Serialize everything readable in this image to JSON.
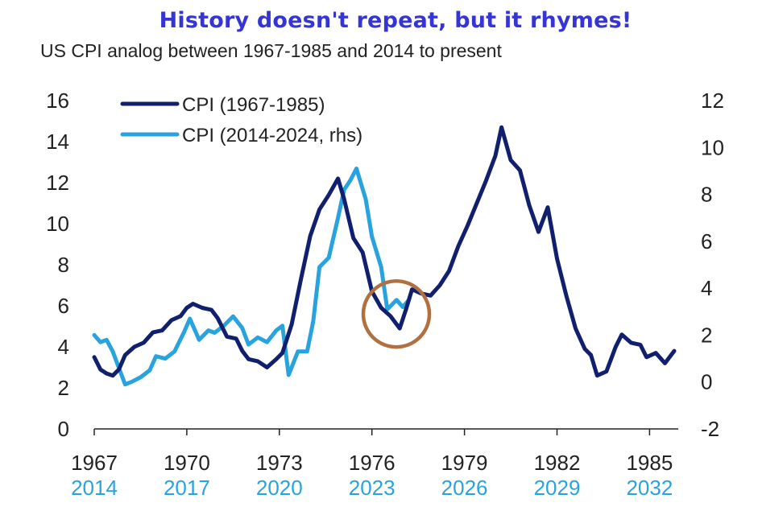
{
  "title": "History doesn't repeat, but it rhymes!",
  "subtitle": "US CPI analog between 1967-1985 and 2014 to present",
  "colors": {
    "title": "#3535d6",
    "series_1967": "#10206e",
    "series_2014": "#29a3dd",
    "highlight_circle": "#b07040"
  },
  "chart_data": {
    "type": "line",
    "title": "History doesn't repeat, but it rhymes!",
    "subtitle": "US CPI analog between 1967-1985 and 2014 to present",
    "x_axis_primary": {
      "label": "",
      "ticks": [
        "1967",
        "1970",
        "1973",
        "1976",
        "1979",
        "1982",
        "1985"
      ],
      "range": [
        1967,
        1986
      ]
    },
    "x_axis_secondary": {
      "label": "",
      "ticks": [
        "2014",
        "2017",
        "2020",
        "2023",
        "2026",
        "2029",
        "2032"
      ],
      "range": [
        2014,
        2033
      ]
    },
    "y_axis_left": {
      "label": "",
      "ticks": [
        "0",
        "2",
        "4",
        "6",
        "8",
        "10",
        "12",
        "14",
        "16"
      ],
      "range": [
        0,
        16
      ]
    },
    "y_axis_right": {
      "label": "",
      "ticks": [
        "-2",
        "0",
        "2",
        "4",
        "6",
        "8",
        "10",
        "12"
      ],
      "range": [
        -2,
        12
      ]
    },
    "grid": false,
    "legend_position": "top-left",
    "annotation": "circle around 1977 / 2024",
    "series": [
      {
        "name": "CPI (1967-1985)",
        "axis": "left",
        "color": "#10206e",
        "points": [
          [
            1967.0,
            3.5
          ],
          [
            1967.2,
            2.9
          ],
          [
            1967.4,
            2.7
          ],
          [
            1967.6,
            2.6
          ],
          [
            1967.8,
            2.9
          ],
          [
            1968.0,
            3.6
          ],
          [
            1968.3,
            4.0
          ],
          [
            1968.6,
            4.2
          ],
          [
            1968.9,
            4.7
          ],
          [
            1969.2,
            4.8
          ],
          [
            1969.5,
            5.3
          ],
          [
            1969.8,
            5.5
          ],
          [
            1970.0,
            5.9
          ],
          [
            1970.2,
            6.1
          ],
          [
            1970.5,
            5.9
          ],
          [
            1970.8,
            5.8
          ],
          [
            1971.0,
            5.4
          ],
          [
            1971.3,
            4.5
          ],
          [
            1971.6,
            4.4
          ],
          [
            1971.8,
            3.8
          ],
          [
            1972.0,
            3.4
          ],
          [
            1972.3,
            3.3
          ],
          [
            1972.6,
            3.0
          ],
          [
            1972.9,
            3.4
          ],
          [
            1973.1,
            3.7
          ],
          [
            1973.4,
            5.1
          ],
          [
            1973.7,
            7.3
          ],
          [
            1974.0,
            9.4
          ],
          [
            1974.3,
            10.7
          ],
          [
            1974.6,
            11.4
          ],
          [
            1974.9,
            12.2
          ],
          [
            1975.1,
            11.2
          ],
          [
            1975.4,
            9.3
          ],
          [
            1975.7,
            8.6
          ],
          [
            1976.0,
            6.7
          ],
          [
            1976.3,
            5.9
          ],
          [
            1976.6,
            5.5
          ],
          [
            1976.9,
            4.9
          ],
          [
            1977.1,
            5.8
          ],
          [
            1977.3,
            6.8
          ],
          [
            1977.6,
            6.6
          ],
          [
            1977.9,
            6.5
          ],
          [
            1978.2,
            7.0
          ],
          [
            1978.5,
            7.7
          ],
          [
            1978.8,
            8.9
          ],
          [
            1979.1,
            9.9
          ],
          [
            1979.4,
            11.0
          ],
          [
            1979.7,
            12.1
          ],
          [
            1980.0,
            13.3
          ],
          [
            1980.2,
            14.7
          ],
          [
            1980.5,
            13.1
          ],
          [
            1980.8,
            12.6
          ],
          [
            1981.1,
            10.9
          ],
          [
            1981.4,
            9.6
          ],
          [
            1981.7,
            10.8
          ],
          [
            1982.0,
            8.3
          ],
          [
            1982.3,
            6.5
          ],
          [
            1982.6,
            4.9
          ],
          [
            1982.9,
            3.9
          ],
          [
            1983.1,
            3.6
          ],
          [
            1983.3,
            2.6
          ],
          [
            1983.6,
            2.8
          ],
          [
            1983.9,
            4.0
          ],
          [
            1984.1,
            4.6
          ],
          [
            1984.4,
            4.2
          ],
          [
            1984.7,
            4.1
          ],
          [
            1984.9,
            3.5
          ],
          [
            1985.2,
            3.7
          ],
          [
            1985.5,
            3.2
          ],
          [
            1985.8,
            3.8
          ]
        ]
      },
      {
        "name": "CPI (2014-2024, rhs)",
        "axis": "right",
        "color": "#29a3dd",
        "points": [
          [
            2014.0,
            2.0
          ],
          [
            2014.2,
            1.7
          ],
          [
            2014.4,
            1.8
          ],
          [
            2014.6,
            1.3
          ],
          [
            2014.8,
            0.6
          ],
          [
            2015.0,
            -0.1
          ],
          [
            2015.2,
            0.0
          ],
          [
            2015.5,
            0.2
          ],
          [
            2015.8,
            0.5
          ],
          [
            2016.0,
            1.1
          ],
          [
            2016.3,
            1.0
          ],
          [
            2016.6,
            1.3
          ],
          [
            2016.9,
            2.1
          ],
          [
            2017.1,
            2.7
          ],
          [
            2017.4,
            1.8
          ],
          [
            2017.7,
            2.2
          ],
          [
            2017.9,
            2.1
          ],
          [
            2018.2,
            2.4
          ],
          [
            2018.5,
            2.8
          ],
          [
            2018.8,
            2.3
          ],
          [
            2019.0,
            1.6
          ],
          [
            2019.3,
            1.9
          ],
          [
            2019.6,
            1.7
          ],
          [
            2019.9,
            2.2
          ],
          [
            2020.1,
            2.4
          ],
          [
            2020.3,
            0.3
          ],
          [
            2020.6,
            1.3
          ],
          [
            2020.9,
            1.3
          ],
          [
            2021.1,
            2.6
          ],
          [
            2021.3,
            4.9
          ],
          [
            2021.6,
            5.3
          ],
          [
            2021.9,
            7.0
          ],
          [
            2022.1,
            8.2
          ],
          [
            2022.3,
            8.6
          ],
          [
            2022.5,
            9.1
          ],
          [
            2022.8,
            7.8
          ],
          [
            2023.0,
            6.2
          ],
          [
            2023.3,
            4.9
          ],
          [
            2023.5,
            3.1
          ],
          [
            2023.8,
            3.5
          ],
          [
            2024.0,
            3.2
          ],
          [
            2024.2,
            3.5
          ]
        ]
      }
    ]
  }
}
